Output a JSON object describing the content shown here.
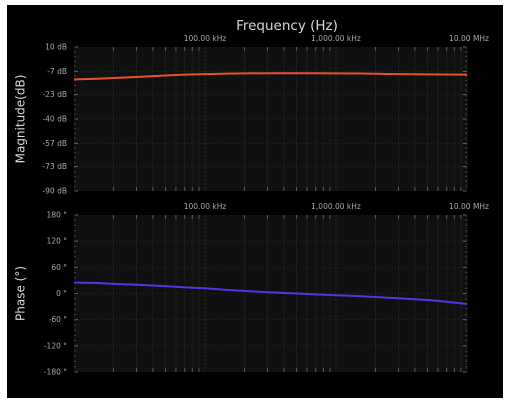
{
  "title": "Frequency (Hz)",
  "chart_data": [
    {
      "type": "line",
      "ylabel": "Magnitude(dB)",
      "x_scale": "log",
      "xlim": [
        10000,
        10000000
      ],
      "ylim": [
        -90,
        10
      ],
      "x_tick_labels": [
        {
          "value": 100000,
          "label": "100.00 kHz"
        },
        {
          "value": 1000000,
          "label": "1,000.00 kHz"
        },
        {
          "value": 10000000,
          "label": "10.00 MHz"
        }
      ],
      "y_ticks": [
        {
          "value": 10,
          "label": "10 dB"
        },
        {
          "value": -7,
          "label": "-7 dB"
        },
        {
          "value": -23,
          "label": "-23 dB"
        },
        {
          "value": -40,
          "label": "-40 dB"
        },
        {
          "value": -57,
          "label": "-57 dB"
        },
        {
          "value": -73,
          "label": "-73 dB"
        },
        {
          "value": -90,
          "label": "-90 dB"
        }
      ],
      "grid": true,
      "color": "#e8502a",
      "series": [
        {
          "x": [
            10000,
            15000,
            20000,
            30000,
            50000,
            70000,
            100000,
            150000,
            200000,
            300000,
            500000,
            700000,
            1000000,
            1500000,
            2000000,
            3000000,
            5000000,
            7000000,
            10000000
          ],
          "y": [
            -12.5,
            -12.0,
            -11.5,
            -10.8,
            -9.8,
            -9.2,
            -8.8,
            -8.5,
            -8.3,
            -8.2,
            -8.2,
            -8.2,
            -8.3,
            -8.4,
            -8.6,
            -8.8,
            -9.0,
            -9.1,
            -9.2
          ]
        }
      ]
    },
    {
      "type": "line",
      "ylabel": "Phase (°)",
      "x_scale": "log",
      "xlim": [
        10000,
        10000000
      ],
      "ylim": [
        -180,
        180
      ],
      "x_tick_labels": [
        {
          "value": 100000,
          "label": "100.00 kHz"
        },
        {
          "value": 1000000,
          "label": "1,000.00 kHz"
        },
        {
          "value": 10000000,
          "label": "10.00 MHz"
        }
      ],
      "y_ticks": [
        {
          "value": 180,
          "label": "180 °"
        },
        {
          "value": 120,
          "label": "120 °"
        },
        {
          "value": 60,
          "label": "60 °"
        },
        {
          "value": 0,
          "label": "0 °"
        },
        {
          "value": -60,
          "label": "-60 °"
        },
        {
          "value": -120,
          "label": "-120 °"
        },
        {
          "value": -180,
          "label": "-180 °"
        }
      ],
      "grid": true,
      "color": "#5533e6",
      "series": [
        {
          "x": [
            10000,
            15000,
            20000,
            30000,
            50000,
            70000,
            100000,
            150000,
            200000,
            300000,
            500000,
            700000,
            1000000,
            1500000,
            2000000,
            3000000,
            5000000,
            7000000,
            10000000
          ],
          "y": [
            25,
            24,
            22,
            20,
            17,
            14,
            12,
            8,
            6,
            3,
            0,
            -2,
            -4,
            -6,
            -8,
            -11,
            -15,
            -19,
            -24
          ]
        }
      ]
    }
  ]
}
